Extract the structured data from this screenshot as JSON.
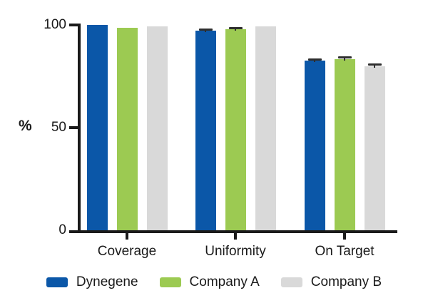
{
  "chart_data": {
    "type": "bar",
    "title": "",
    "categories": [
      "Coverage",
      "Uniformity",
      "On Target"
    ],
    "series": [
      {
        "name": "Dynegene",
        "color": "#0B57A8",
        "values": [
          99.8,
          97.1,
          82.4
        ],
        "errors": [
          0,
          0.7,
          0.8
        ]
      },
      {
        "name": "Company A",
        "color": "#9CCA52",
        "values": [
          98.4,
          97.7,
          83.3
        ],
        "errors": [
          0,
          0.6,
          0.8
        ]
      },
      {
        "name": "Company B",
        "color": "#D9D9D9",
        "values": [
          99.3,
          99.0,
          79.8
        ],
        "errors": [
          0,
          0.0,
          0.8
        ]
      }
    ],
    "xlabel": "",
    "ylabel": "%",
    "yticks": [
      0,
      50,
      100
    ],
    "ylim": [
      0,
      100
    ],
    "grid": false,
    "legend_position": "bottom",
    "error_bar_color": "#2e2e2e",
    "axis_color": "#1a1a1a"
  }
}
